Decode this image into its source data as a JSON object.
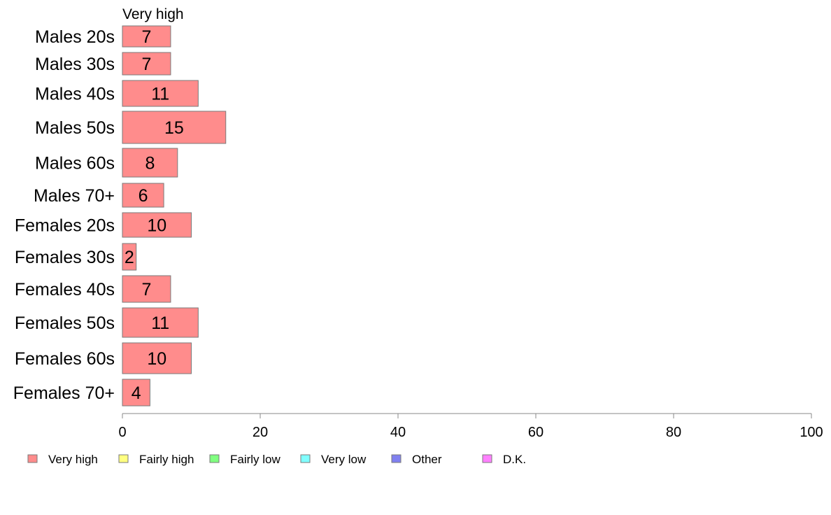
{
  "chart_data": {
    "type": "bar",
    "orientation": "horizontal",
    "series_label": "Very high",
    "categories": [
      "Males 20s",
      "Males 30s",
      "Males 40s",
      "Males 50s",
      "Males 60s",
      "Males 70+",
      "Females 20s",
      "Females 30s",
      "Females 40s",
      "Females 50s",
      "Females 60s",
      "Females 70+"
    ],
    "series": [
      {
        "name": "Very high",
        "color": "#ff8c8c",
        "values": [
          7,
          7,
          11,
          15,
          8,
          6,
          10,
          2,
          7,
          11,
          10,
          4
        ]
      }
    ],
    "value_labels": [
      "7",
      "7",
      "11",
      "15",
      "8",
      "6",
      "10",
      "2",
      "7",
      "11",
      "10",
      "4"
    ],
    "xlim": [
      0,
      100
    ],
    "xticks": [
      0,
      20,
      40,
      60,
      80,
      100
    ],
    "xtick_labels": [
      "0",
      "20",
      "40",
      "60",
      "80",
      "100"
    ],
    "grid": false,
    "legend_position": "bottom",
    "legend": [
      {
        "label": "Very high",
        "color": "#ff8c8c"
      },
      {
        "label": "Fairly high",
        "color": "#ffff80"
      },
      {
        "label": "Fairly low",
        "color": "#80ff80"
      },
      {
        "label": "Very low",
        "color": "#80ffff"
      },
      {
        "label": "Other",
        "color": "#8080f0"
      },
      {
        "label": "D.K.",
        "color": "#ff80ff"
      }
    ]
  }
}
